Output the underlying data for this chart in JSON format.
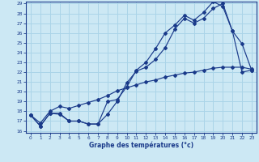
{
  "xlabel": "Graphe des températures (°c)",
  "xlim": [
    -0.5,
    23.5
  ],
  "ylim": [
    15.8,
    29.2
  ],
  "xticks": [
    0,
    1,
    2,
    3,
    4,
    5,
    6,
    7,
    8,
    9,
    10,
    11,
    12,
    13,
    14,
    15,
    16,
    17,
    18,
    19,
    20,
    21,
    22,
    23
  ],
  "yticks": [
    16,
    17,
    18,
    19,
    20,
    21,
    22,
    23,
    24,
    25,
    26,
    27,
    28,
    29
  ],
  "bg_color": "#cce8f4",
  "line_color": "#1a3a8a",
  "grid_color": "#aad4e8",
  "curve1_x": [
    0,
    1,
    2,
    3,
    4,
    5,
    6,
    7,
    8,
    9,
    10,
    11,
    12,
    13,
    14,
    15,
    16,
    17,
    18,
    19,
    20,
    21,
    22,
    23
  ],
  "curve1_y": [
    17.6,
    16.5,
    17.8,
    17.8,
    17.0,
    17.0,
    16.7,
    16.7,
    17.7,
    19.0,
    20.9,
    22.1,
    22.5,
    23.3,
    24.5,
    26.4,
    27.5,
    27.0,
    27.5,
    28.5,
    29.0,
    26.2,
    22.0,
    22.2
  ],
  "curve2_x": [
    0,
    1,
    2,
    3,
    4,
    5,
    6,
    7,
    8,
    9,
    10,
    11,
    12,
    13,
    14,
    15,
    16,
    17,
    18,
    19,
    20,
    21,
    22,
    23
  ],
  "curve2_y": [
    17.6,
    16.5,
    17.8,
    17.7,
    17.0,
    17.0,
    16.7,
    16.7,
    19.0,
    19.2,
    20.5,
    22.2,
    23.0,
    24.4,
    26.0,
    26.8,
    27.8,
    27.3,
    28.1,
    29.2,
    28.7,
    26.2,
    24.9,
    22.2
  ],
  "curve3_x": [
    0,
    1,
    2,
    3,
    4,
    5,
    6,
    7,
    8,
    9,
    10,
    11,
    12,
    13,
    14,
    15,
    16,
    17,
    18,
    19,
    20,
    21,
    22,
    23
  ],
  "curve3_y": [
    17.6,
    16.8,
    18.0,
    18.5,
    18.3,
    18.6,
    18.9,
    19.2,
    19.6,
    20.1,
    20.4,
    20.7,
    21.0,
    21.2,
    21.5,
    21.7,
    21.9,
    22.0,
    22.2,
    22.4,
    22.5,
    22.5,
    22.5,
    22.3
  ]
}
